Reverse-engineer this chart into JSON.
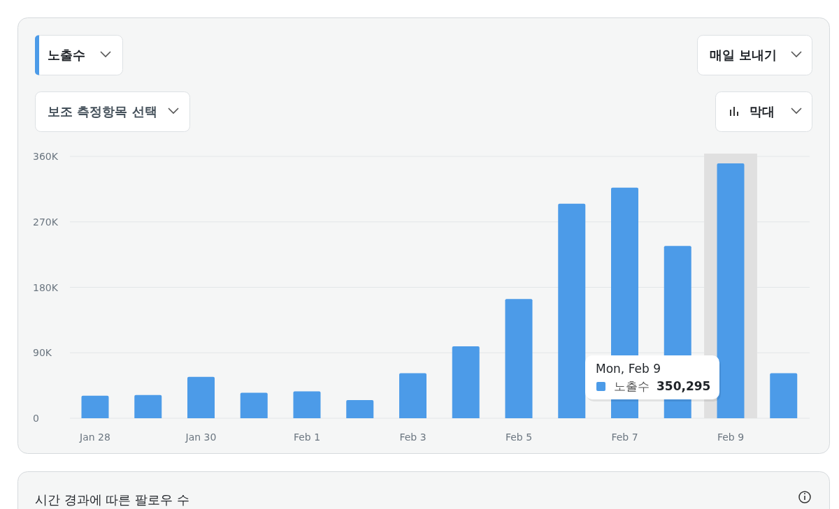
{
  "chart_data": {
    "type": "bar",
    "categories": [
      "Jan 28",
      null,
      "Jan 30",
      null,
      "Feb 1",
      null,
      "Feb 3",
      null,
      "Feb 5",
      null,
      "Feb 7",
      null,
      "Feb 9",
      null
    ],
    "series": [
      {
        "name": "노출수",
        "color": "#4c9be8",
        "values": [
          31000,
          32000,
          57000,
          35000,
          37000,
          25000,
          62000,
          99000,
          164000,
          295000,
          317000,
          237000,
          350295,
          62000
        ]
      }
    ],
    "ylim": [
      0,
      360000
    ],
    "yticks": [
      {
        "value": 0,
        "label": "0"
      },
      {
        "value": 90000,
        "label": "90K"
      },
      {
        "value": 180000,
        "label": "180K"
      },
      {
        "value": 270000,
        "label": "270K"
      },
      {
        "value": 360000,
        "label": "360K"
      }
    ],
    "grid": "y",
    "bands": [
      {
        "axis": "x",
        "from": "Feb 9",
        "to": "Feb 9",
        "color": "#e0e0e0"
      }
    ],
    "annotations": [
      "노출수",
      "매일 보내기",
      "보조 측정항목 선택",
      "막대",
      "시간 경과에 따른 팔로우 수",
      "Mon, Feb 9",
      "350,295"
    ]
  }
}
